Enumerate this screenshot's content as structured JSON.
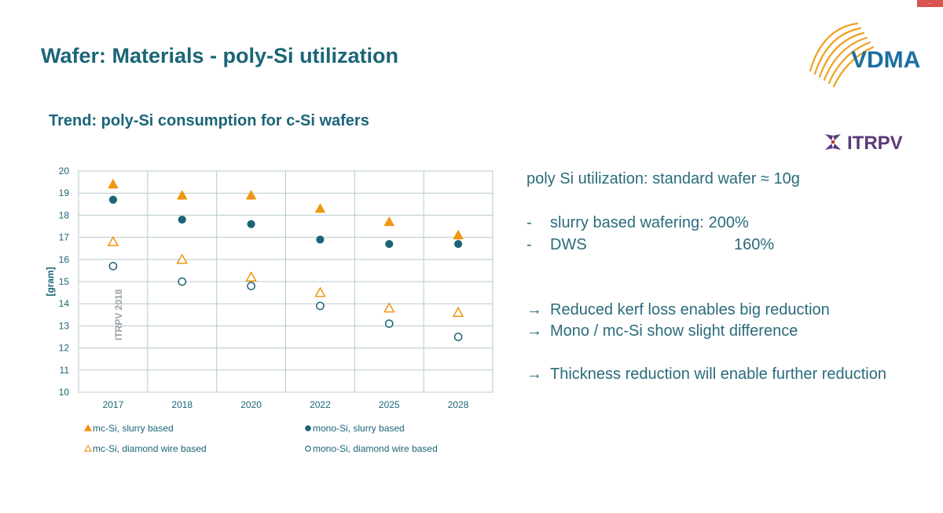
{
  "slide": {
    "title": "Wafer: Materials - poly-Si utilization",
    "subtitle": "Trend: poly-Si consumption for c-Si wafers",
    "corner_badge": "..."
  },
  "logos": {
    "vdma": "VDMA",
    "itrpv": "ITRPV",
    "vdma_color": "#1b6fa3",
    "vdma_arc_color": "#f0a020",
    "itrpv_color": "#5b3a7a"
  },
  "chart_data": {
    "type": "scatter",
    "categories": [
      "2017",
      "2018",
      "2020",
      "2022",
      "2025",
      "2028"
    ],
    "ylabel": "[gram]",
    "ylim": [
      10,
      20
    ],
    "yticks": [
      10,
      11,
      12,
      13,
      14,
      15,
      16,
      17,
      18,
      19,
      20
    ],
    "grid": true,
    "watermark": "ITRPV 2018",
    "legend_position": "bottom",
    "series": [
      {
        "name": "mc-Si, slurry based",
        "marker": "triangle-filled",
        "color": "#f0960f",
        "values": [
          19.4,
          18.9,
          18.9,
          18.3,
          17.7,
          17.1
        ]
      },
      {
        "name": "mono-Si, slurry based",
        "marker": "circle-filled",
        "color": "#1b6577",
        "values": [
          18.7,
          17.8,
          17.6,
          16.9,
          16.7,
          16.7
        ]
      },
      {
        "name": "mc-Si, diamond wire based",
        "marker": "triangle-open",
        "color": "#f0960f",
        "values": [
          16.8,
          16.0,
          15.2,
          14.5,
          13.8,
          13.6
        ]
      },
      {
        "name": "mono-Si, diamond wire based",
        "marker": "circle-open",
        "color": "#1b6577",
        "values": [
          15.7,
          15.0,
          14.8,
          13.9,
          13.1,
          12.5
        ]
      }
    ]
  },
  "text_panel": {
    "headline": "poly Si utilization: standard wafer ≈ 10g",
    "dash_items": [
      {
        "marker": "-",
        "label": "slurry based wafering:",
        "value": "200%"
      },
      {
        "marker": "-",
        "label": "DWS",
        "value": "160%"
      }
    ],
    "arrow_items": [
      "Reduced kerf loss enables big reduction",
      "Mono / mc-Si show slight difference",
      "Thickness reduction will enable further reduction"
    ],
    "arrow_glyph": "→"
  }
}
